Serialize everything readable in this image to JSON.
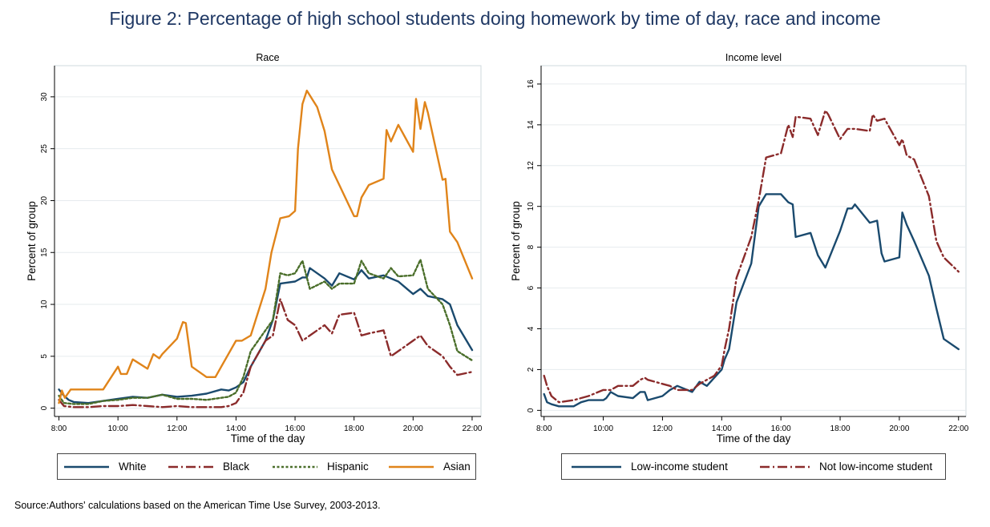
{
  "figure": {
    "title": "Figure 2: Percentage of high school students doing homework by time of day, race and income",
    "source": "Source:Authors' calculations based on the American Time Use Survey, 2003-2013."
  },
  "colors": {
    "white": "#1a4a6e",
    "black": "#8b2b2b",
    "hispanic": "#4a6e2a",
    "asian": "#e0841a",
    "low_income": "#1a4a6e",
    "not_low_income": "#8b2b2b"
  },
  "chart_data": [
    {
      "type": "line",
      "title": "Race",
      "xlabel": "Time of the day",
      "ylabel": "Percent of group",
      "xlim": [
        7.85,
        22.3
      ],
      "ylim": [
        -0.8,
        33
      ],
      "x_ticks": [
        8,
        10,
        12,
        14,
        16,
        18,
        20,
        22
      ],
      "x_tick_labels": [
        "8:00",
        "10:00",
        "12:00",
        "14:00",
        "16:00",
        "18:00",
        "20:00",
        "22:00"
      ],
      "y_ticks": [
        0,
        5,
        10,
        15,
        20,
        25,
        30
      ],
      "y_tick_labels": [
        "0",
        "5",
        "10",
        "15",
        "20",
        "25",
        "30"
      ],
      "grid": true,
      "legend_position": "bottom",
      "series": [
        {
          "name": "White",
          "style": "solid",
          "x": [
            8,
            8.17,
            8.33,
            8.5,
            9,
            9.5,
            10,
            10.5,
            11,
            11.5,
            12,
            12.5,
            13,
            13.5,
            13.75,
            14,
            14.25,
            14.5,
            15,
            15.25,
            15.5,
            16,
            16.25,
            16.4,
            16.5,
            17,
            17.25,
            17.5,
            18,
            18.25,
            18.5,
            19,
            19.25,
            19.5,
            20,
            20.25,
            20.5,
            21,
            21.25,
            21.5,
            22
          ],
          "y": [
            1.8,
            1.2,
            0.8,
            0.6,
            0.5,
            0.7,
            0.9,
            1.1,
            1.0,
            1.3,
            1.1,
            1.2,
            1.4,
            1.8,
            1.7,
            2.0,
            2.5,
            4.0,
            6.5,
            8.5,
            12.0,
            12.2,
            12.6,
            12.6,
            13.5,
            12.5,
            11.8,
            13.0,
            12.4,
            13.3,
            12.5,
            12.8,
            12.5,
            12.2,
            11.0,
            11.5,
            10.8,
            10.5,
            10.0,
            8.0,
            5.6
          ]
        },
        {
          "name": "Black",
          "style": "dashdot",
          "x": [
            8,
            8.17,
            8.5,
            9,
            9.5,
            10,
            10.5,
            11,
            11.5,
            12,
            12.5,
            13,
            13.5,
            13.75,
            14,
            14.25,
            14.5,
            15,
            15.25,
            15.5,
            15.75,
            16,
            16.25,
            16.5,
            17,
            17.25,
            17.5,
            18,
            18.25,
            18.5,
            19,
            19.25,
            19.5,
            20,
            20.25,
            20.5,
            21,
            21.25,
            21.5,
            22
          ],
          "y": [
            0.8,
            0.2,
            0.1,
            0.1,
            0.2,
            0.2,
            0.3,
            0.2,
            0.1,
            0.2,
            0.1,
            0.1,
            0.1,
            0.2,
            0.5,
            1.5,
            4.0,
            6.5,
            7.0,
            10.5,
            8.5,
            8.0,
            6.5,
            7.0,
            8.0,
            7.2,
            9.0,
            9.2,
            7.0,
            7.2,
            7.5,
            5.0,
            5.5,
            6.5,
            7.0,
            6.0,
            5.0,
            4.0,
            3.2,
            3.5
          ]
        },
        {
          "name": "Hispanic",
          "style": "dotted",
          "x": [
            8,
            8.17,
            8.5,
            9,
            9.5,
            10,
            10.5,
            11,
            11.5,
            12,
            12.5,
            13,
            13.5,
            13.75,
            14,
            14.25,
            14.5,
            15,
            15.25,
            15.5,
            15.75,
            16,
            16.25,
            16.5,
            17,
            17.25,
            17.5,
            18,
            18.25,
            18.5,
            19,
            19.25,
            19.5,
            20,
            20.25,
            20.5,
            21,
            21.25,
            21.5,
            22
          ],
          "y": [
            1.2,
            0.5,
            0.4,
            0.4,
            0.7,
            0.8,
            1.0,
            1.0,
            1.3,
            0.9,
            0.9,
            0.8,
            1.0,
            1.1,
            1.5,
            3.0,
            5.5,
            7.5,
            8.5,
            13.0,
            12.8,
            13.0,
            14.2,
            11.5,
            12.2,
            11.5,
            12.0,
            12.0,
            14.2,
            13.0,
            12.5,
            13.5,
            12.7,
            12.8,
            14.3,
            11.5,
            10.0,
            8.0,
            5.5,
            4.6
          ]
        },
        {
          "name": "Asian",
          "style": "solid",
          "x": [
            8,
            8.1,
            8.2,
            8.4,
            8.6,
            9,
            9.5,
            10,
            10.1,
            10.3,
            10.5,
            11,
            11.2,
            11.4,
            11.5,
            12,
            12.2,
            12.3,
            12.5,
            13,
            13.3,
            13.5,
            14,
            14.2,
            14.5,
            15,
            15.2,
            15.5,
            15.8,
            16,
            16.1,
            16.25,
            16.4,
            16.75,
            17,
            17.25,
            17.5,
            18,
            18.1,
            18.25,
            18.5,
            19,
            19.1,
            19.25,
            19.5,
            20,
            20.1,
            20.25,
            20.4,
            20.5,
            21,
            21.1,
            21.25,
            21.5,
            22
          ],
          "y": [
            0.5,
            1.7,
            1.0,
            1.8,
            1.8,
            1.8,
            1.8,
            4.0,
            3.3,
            3.3,
            4.7,
            3.8,
            5.2,
            4.8,
            5.2,
            6.7,
            8.3,
            8.2,
            4.0,
            3.0,
            3.0,
            4.0,
            6.5,
            6.5,
            7.0,
            11.5,
            15.0,
            18.3,
            18.5,
            19.0,
            25.0,
            29.3,
            30.6,
            29.0,
            26.7,
            23.0,
            21.5,
            18.5,
            18.5,
            20.3,
            21.5,
            22.1,
            26.8,
            25.7,
            27.3,
            24.7,
            29.8,
            26.9,
            29.5,
            28.5,
            22.0,
            22.1,
            17.0,
            16.0,
            12.5
          ]
        }
      ]
    },
    {
      "type": "line",
      "title": "Income level",
      "xlabel": "Time of the day",
      "ylabel": "Percent of group",
      "xlim": [
        7.9,
        22.25
      ],
      "ylim": [
        -0.3,
        16.9
      ],
      "x_ticks": [
        8,
        10,
        12,
        14,
        16,
        18,
        20,
        22
      ],
      "x_tick_labels": [
        "8:00",
        "10:00",
        "12:00",
        "14:00",
        "16:00",
        "18:00",
        "20:00",
        "22:00"
      ],
      "y_ticks": [
        0,
        2,
        4,
        6,
        8,
        10,
        12,
        14,
        16
      ],
      "y_tick_labels": [
        "0",
        "2",
        "4",
        "6",
        "8",
        "10",
        "12",
        "14",
        "16"
      ],
      "grid": true,
      "legend_position": "bottom",
      "series": [
        {
          "name": "Low-income student",
          "style": "solid",
          "x": [
            8,
            8.1,
            8.25,
            8.5,
            9,
            9.25,
            9.5,
            10,
            10.1,
            10.25,
            10.5,
            11,
            11.25,
            11.4,
            11.5,
            12,
            12.25,
            12.5,
            13,
            13.25,
            13.5,
            13.75,
            14,
            14.1,
            14.25,
            14.5,
            15,
            15.25,
            15.5,
            16,
            16.25,
            16.4,
            16.5,
            17,
            17.25,
            17.5,
            18,
            18.25,
            18.4,
            18.5,
            19,
            19.25,
            19.4,
            19.5,
            20,
            20.1,
            20.25,
            20.5,
            21,
            21.25,
            21.5,
            22
          ],
          "y": [
            0.8,
            0.4,
            0.3,
            0.2,
            0.2,
            0.4,
            0.5,
            0.5,
            0.6,
            0.9,
            0.7,
            0.6,
            0.9,
            0.9,
            0.5,
            0.7,
            1.0,
            1.2,
            0.9,
            1.4,
            1.2,
            1.6,
            2.0,
            2.5,
            3.0,
            5.3,
            7.2,
            10.0,
            10.6,
            10.6,
            10.2,
            10.1,
            8.5,
            8.7,
            7.6,
            7.0,
            8.8,
            9.9,
            9.9,
            10.1,
            9.2,
            9.3,
            7.7,
            7.3,
            7.5,
            9.7,
            9.1,
            8.3,
            6.6,
            5.0,
            3.5,
            3.0
          ]
        },
        {
          "name": "Not low-income student",
          "style": "dashdot",
          "x": [
            8,
            8.1,
            8.25,
            8.5,
            9,
            9.5,
            10,
            10.25,
            10.5,
            11,
            11.25,
            11.4,
            11.5,
            12,
            12.25,
            12.5,
            13,
            13.25,
            13.5,
            13.75,
            14,
            14.1,
            14.25,
            14.5,
            15,
            15.25,
            15.5,
            16,
            16.25,
            16.4,
            16.5,
            17,
            17.25,
            17.5,
            17.6,
            18,
            18.25,
            18.5,
            19,
            19.1,
            19.25,
            19.5,
            20,
            20.1,
            20.25,
            20.5,
            21,
            21.25,
            21.5,
            22
          ],
          "y": [
            1.7,
            1.2,
            0.7,
            0.4,
            0.5,
            0.7,
            1.0,
            1.0,
            1.2,
            1.2,
            1.5,
            1.6,
            1.5,
            1.3,
            1.2,
            1.0,
            1.0,
            1.3,
            1.5,
            1.7,
            2.2,
            3.0,
            4.0,
            6.5,
            8.5,
            10.3,
            12.4,
            12.6,
            14.0,
            13.4,
            14.4,
            14.3,
            13.5,
            14.7,
            14.5,
            13.3,
            13.8,
            13.8,
            13.7,
            14.5,
            14.2,
            14.3,
            13.0,
            13.3,
            12.5,
            12.3,
            10.5,
            8.3,
            7.5,
            6.8
          ]
        }
      ]
    }
  ]
}
